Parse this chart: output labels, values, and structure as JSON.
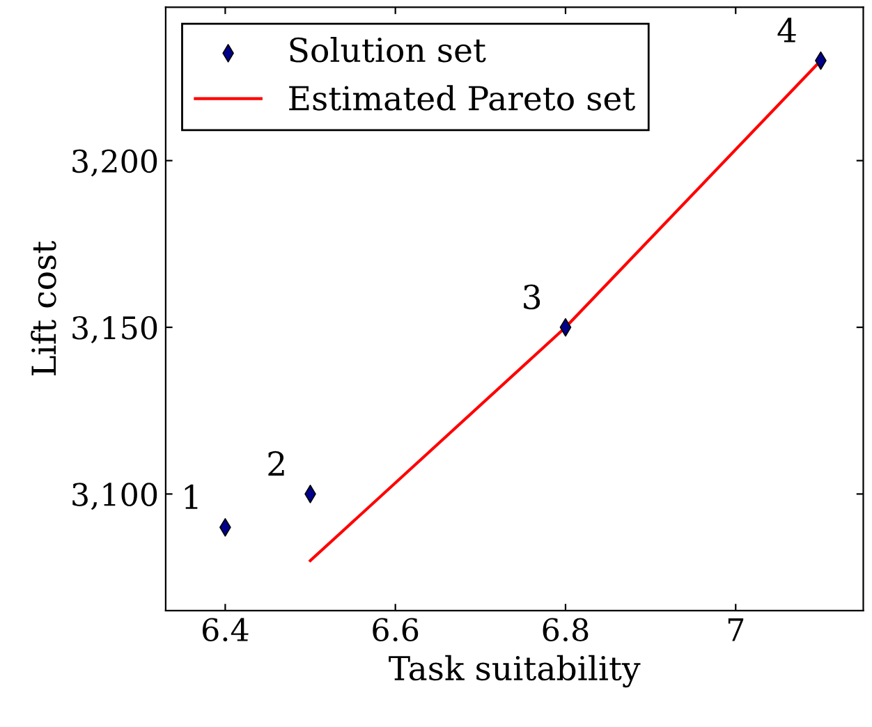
{
  "chart_data": {
    "type": "scatter",
    "xlabel": "Task suitability",
    "ylabel": "Lift cost",
    "series": [
      {
        "name": "Solution set",
        "color": "#00008b",
        "marker": "diamond",
        "x": [
          6.4,
          6.5,
          6.8,
          7.1
        ],
        "values": [
          3090,
          3100,
          3150,
          3230
        ]
      },
      {
        "name": "Estimated Pareto set",
        "type": "line",
        "color": "#ff0000",
        "marker": "none",
        "line_style": "solid",
        "x": [
          6.5,
          6.8,
          7.1
        ],
        "values": [
          3080,
          3150,
          3230
        ]
      }
    ],
    "annotations": [
      {
        "text": "1",
        "x": 6.4,
        "y": 3090
      },
      {
        "text": "2",
        "x": 6.5,
        "y": 3100
      },
      {
        "text": "3",
        "x": 6.8,
        "y": 3150
      },
      {
        "text": "4",
        "x": 7.1,
        "y": 3230
      }
    ],
    "xlim": [
      6.33,
      7.15
    ],
    "ylim": [
      3065,
      3246
    ],
    "xticks": [
      6.4,
      6.6,
      6.8,
      {
        "value": 7,
        "label": "7"
      }
    ],
    "yticks": [
      {
        "value": 3100,
        "label": "3,100"
      },
      {
        "value": 3150,
        "label": "3,150"
      },
      {
        "value": 3200,
        "label": "3,200"
      }
    ],
    "grid": false,
    "legend": "top left"
  }
}
